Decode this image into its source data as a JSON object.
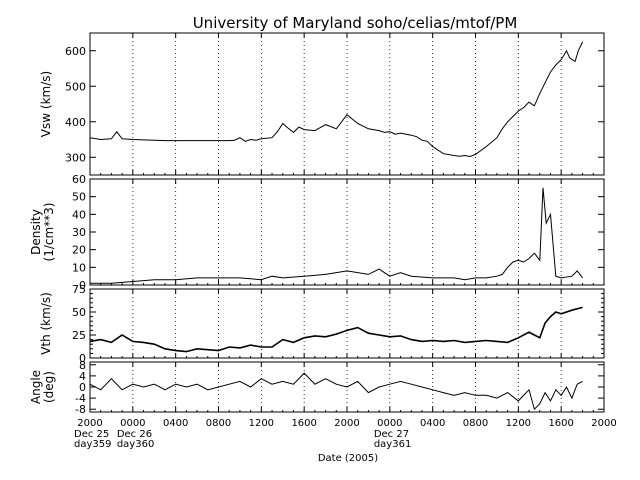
{
  "title": "University of Maryland  soho/celias/mtof/PM",
  "chart_data": [
    {
      "type": "line",
      "ylabel": "Vsw (km/s)",
      "ylim": [
        250,
        650
      ],
      "yticks": [
        300,
        400,
        500,
        600
      ],
      "grid": "vertical-dotted",
      "series": [
        {
          "x": [
            0,
            1,
            2,
            2.5,
            3,
            4,
            5,
            6,
            7,
            8,
            9,
            10,
            11,
            12,
            12.5,
            13,
            13.5,
            14,
            14.5,
            15,
            15.5,
            16,
            17,
            17.5,
            18,
            18.5,
            19,
            19.5,
            20,
            21,
            22,
            23,
            24,
            25,
            26,
            27,
            27.5,
            28,
            28.5,
            29,
            30,
            30.5,
            31,
            31.5,
            32,
            33,
            34,
            34.5,
            35,
            35.5,
            36,
            37,
            38,
            38.5,
            39,
            40,
            40.5,
            41,
            41.5,
            42,
            42.5,
            43,
            43.5,
            44,
            44.5,
            44.8,
            45,
            45.3,
            45.6,
            46
          ],
          "values": [
            355,
            350,
            352,
            372,
            352,
            350,
            349,
            348,
            347,
            347,
            347,
            347,
            347,
            347,
            347,
            347,
            348,
            355,
            345,
            350,
            348,
            352,
            355,
            372,
            395,
            382,
            370,
            385,
            378,
            375,
            392,
            380,
            420,
            395,
            380,
            375,
            370,
            372,
            365,
            368,
            362,
            358,
            348,
            345,
            330,
            310,
            305,
            303,
            305,
            302,
            308,
            330,
            355,
            380,
            400,
            430,
            440,
            455,
            445,
            480,
            510,
            540,
            560,
            575,
            600,
            580,
            575,
            570,
            600,
            625
          ]
        }
      ]
    },
    {
      "type": "line",
      "ylabel": "Density (1/cm**3)",
      "ylim": [
        0,
        60
      ],
      "yticks": [
        0,
        10,
        20,
        30,
        40,
        50,
        60
      ],
      "grid": "vertical-dotted",
      "series": [
        {
          "x": [
            0,
            2,
            4,
            6,
            8,
            10,
            12,
            14,
            16,
            17,
            18,
            20,
            22,
            24,
            26,
            27,
            28,
            29,
            30,
            32,
            34,
            35,
            36,
            37,
            38,
            38.5,
            39,
            39.5,
            40,
            40.5,
            41,
            41.5,
            42,
            42.3,
            42.6,
            43,
            43.5,
            44,
            45,
            45.5,
            46
          ],
          "values": [
            1,
            1,
            2,
            3,
            3,
            4,
            4,
            4,
            3,
            5,
            4,
            5,
            6,
            8,
            6,
            9,
            5,
            7,
            5,
            4,
            4,
            3,
            4,
            4,
            5,
            6,
            10,
            13,
            14,
            13,
            15,
            18,
            14,
            55,
            35,
            40,
            5,
            4,
            5,
            8,
            4
          ]
        }
      ]
    },
    {
      "type": "line",
      "ylabel": "Vth (km/s)",
      "ylim": [
        0,
        75
      ],
      "yticks": [
        0,
        25,
        50,
        75
      ],
      "yminor": [
        5,
        10,
        15,
        20,
        30,
        35,
        40,
        45,
        55,
        60,
        65,
        70
      ],
      "grid": "vertical-dotted",
      "series": [
        {
          "x": [
            0,
            1,
            2,
            3,
            4,
            5,
            6,
            7,
            8,
            9,
            10,
            11,
            12,
            13,
            14,
            15,
            16,
            17,
            18,
            19,
            20,
            21,
            22,
            23,
            24,
            25,
            26,
            27,
            28,
            29,
            30,
            31,
            32,
            33,
            34,
            35,
            36,
            37,
            38,
            39,
            40,
            41,
            41.5,
            42,
            42.5,
            43,
            43.5,
            44,
            45,
            46
          ],
          "values": [
            18,
            20,
            17,
            25,
            18,
            17,
            15,
            10,
            8,
            7,
            10,
            9,
            8,
            12,
            11,
            14,
            12,
            12,
            20,
            17,
            22,
            24,
            23,
            26,
            30,
            33,
            27,
            25,
            23,
            24,
            20,
            18,
            19,
            18,
            19,
            17,
            18,
            19,
            18,
            17,
            22,
            28,
            25,
            22,
            38,
            45,
            50,
            48,
            52,
            55
          ]
        }
      ]
    },
    {
      "type": "line",
      "ylabel": "Angle (deg)",
      "ylim": [
        -9,
        9
      ],
      "yticks": [
        -8,
        -4,
        0,
        4,
        8
      ],
      "grid": "vertical-dotted",
      "series": [
        {
          "x": [
            0,
            1,
            2,
            3,
            4,
            5,
            6,
            7,
            8,
            9,
            10,
            11,
            12,
            13,
            14,
            15,
            16,
            17,
            18,
            19,
            20,
            21,
            22,
            23,
            24,
            25,
            26,
            27,
            28,
            29,
            30,
            31,
            32,
            33,
            34,
            35,
            36,
            37,
            38,
            39,
            40,
            41,
            41.5,
            42,
            42.5,
            43,
            43.5,
            44,
            44.5,
            45,
            45.5,
            46
          ],
          "values": [
            1,
            -1,
            3,
            -1,
            1,
            0,
            1,
            -1,
            1,
            0,
            1,
            -1,
            0,
            1,
            2,
            0,
            3,
            1,
            2,
            1,
            5,
            1,
            3,
            1,
            0,
            2,
            -2,
            0,
            1,
            2,
            1,
            0,
            -1,
            -2,
            -3,
            -2,
            -3,
            -3,
            -4,
            -2,
            -5,
            -1,
            -8,
            -6,
            -2,
            -5,
            -1,
            -3,
            0,
            -4,
            1,
            2
          ]
        }
      ]
    }
  ],
  "x_axis": {
    "xlim": [
      0,
      48
    ],
    "tick_hours": [
      0,
      4,
      8,
      12,
      16,
      20,
      24,
      28,
      32,
      36,
      40,
      44,
      48
    ],
    "tick_labels": [
      "2000",
      "0000",
      "0400",
      "0800",
      "1200",
      "1600",
      "2000",
      "0000",
      "0400",
      "0800",
      "1200",
      "1600",
      "2000"
    ],
    "date_labels": [
      {
        "hour": 0,
        "line1": "Dec 25",
        "line2": "day359"
      },
      {
        "hour": 4,
        "line1": "Dec 26",
        "line2": "day360"
      },
      {
        "hour": 28,
        "line1": "Dec 27",
        "line2": "day361"
      }
    ],
    "xlabel": "Date (2005)"
  }
}
